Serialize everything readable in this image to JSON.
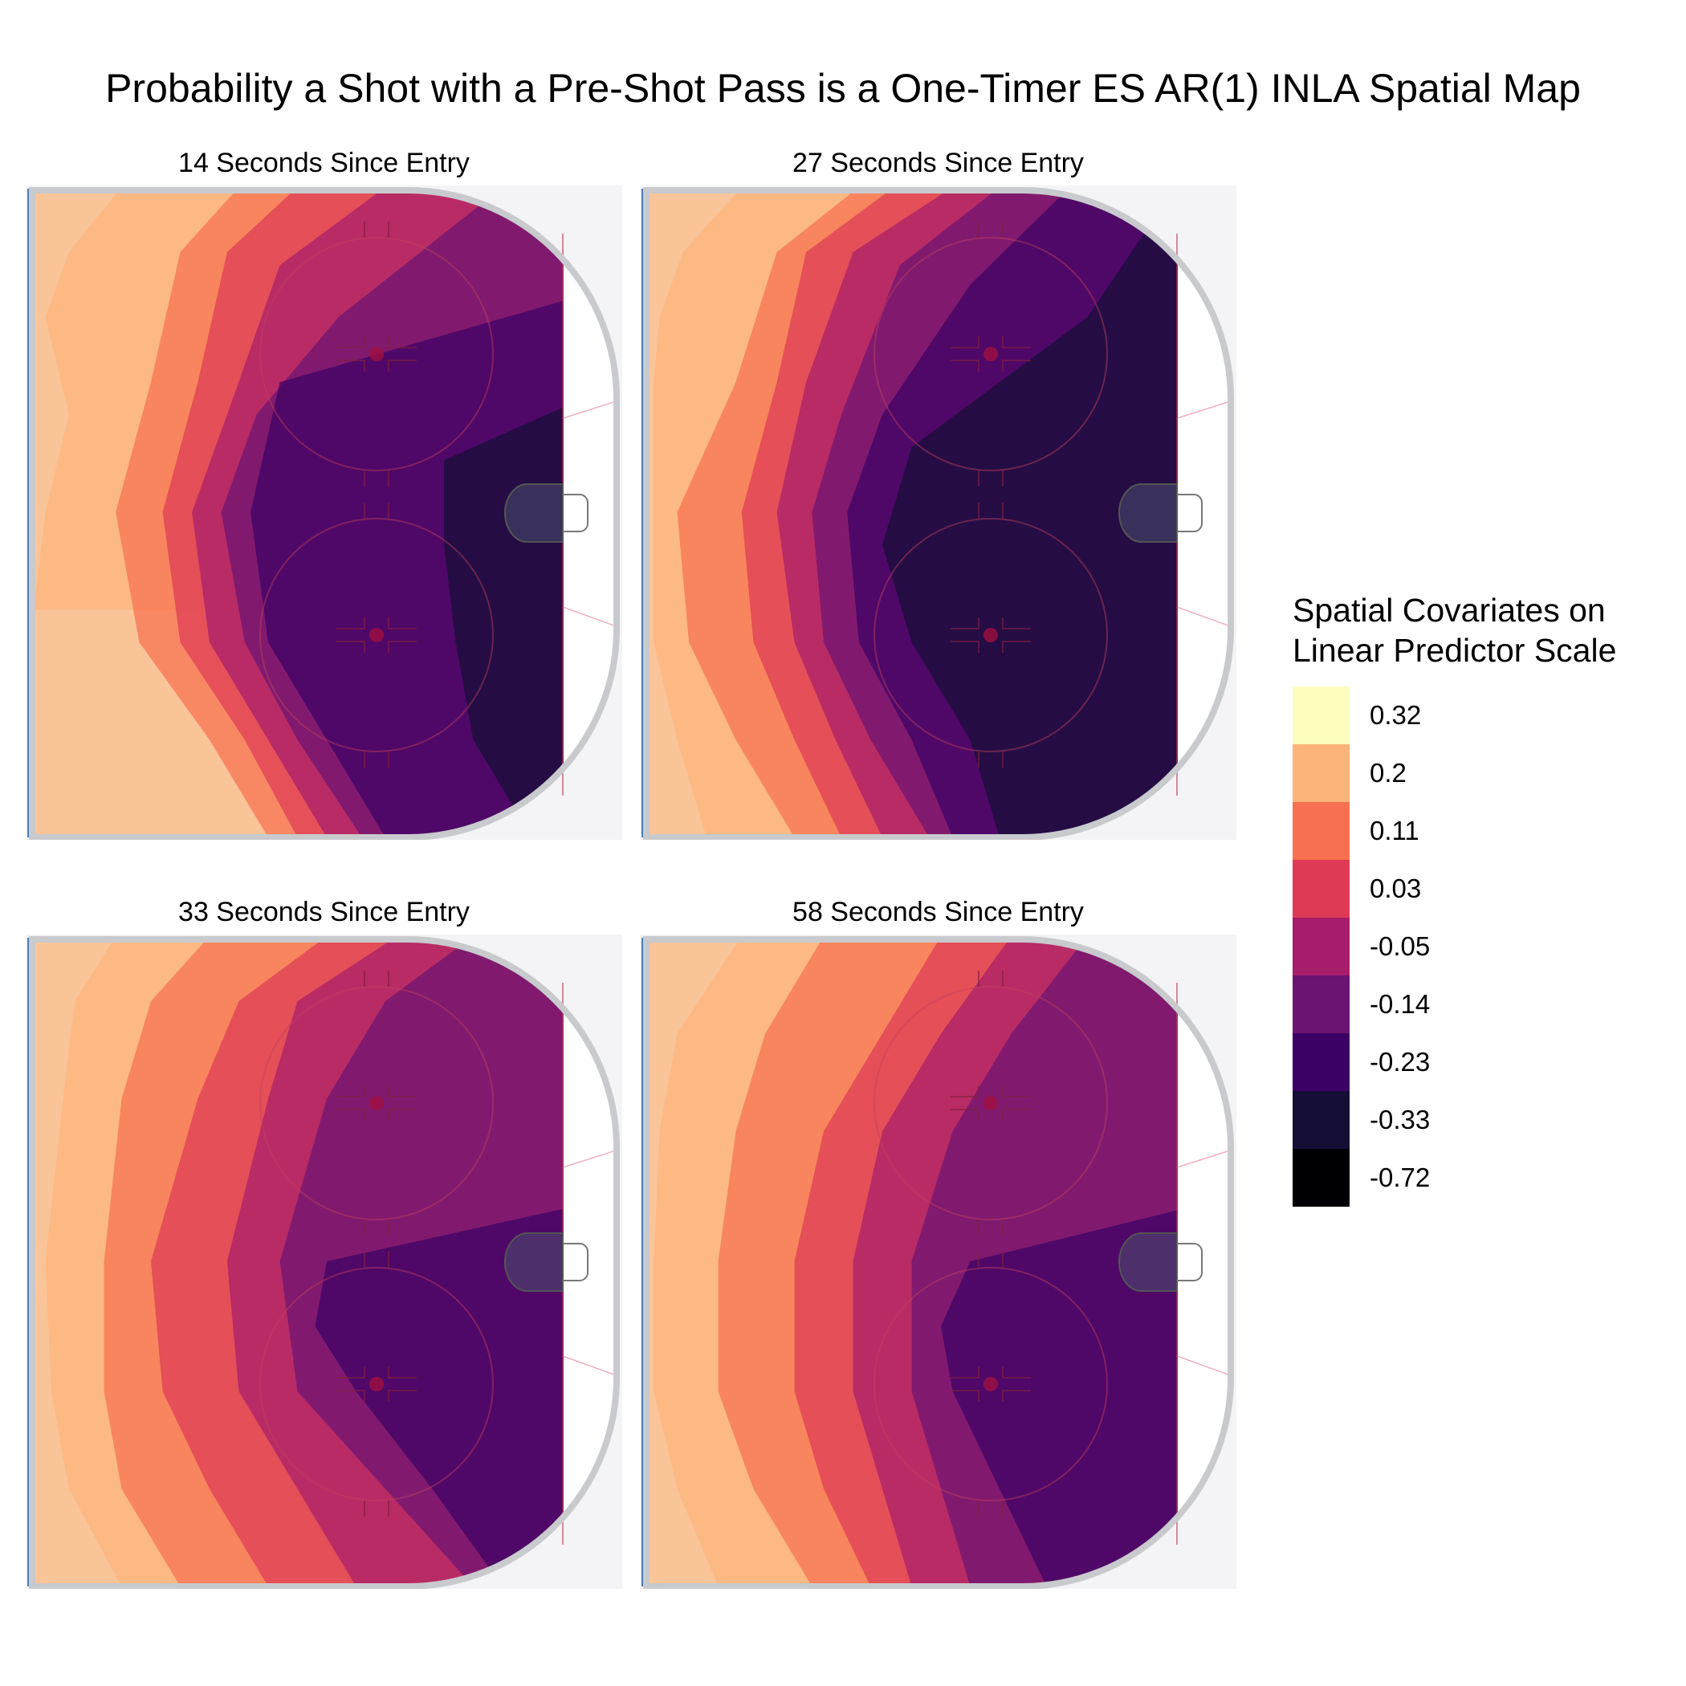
{
  "title": "Probability a Shot with a Pre-Shot Pass is a One-Timer ES AR(1) INLA Spatial Map",
  "legend": {
    "title_line1": "Spatial Covariates on",
    "title_line2": "Linear Predictor Scale",
    "items": [
      {
        "label": "0.32",
        "color": "#FCFDBF"
      },
      {
        "label": "0.2",
        "color": "#FCB47A"
      },
      {
        "label": "0.11",
        "color": "#F7704F"
      },
      {
        "label": "0.03",
        "color": "#DE3A55"
      },
      {
        "label": "-0.05",
        "color": "#A81D6B"
      },
      {
        "label": "-0.14",
        "color": "#6B1472"
      },
      {
        "label": "-0.23",
        "color": "#3B0165"
      },
      {
        "label": "-0.33",
        "color": "#150E37"
      },
      {
        "label": "-0.72",
        "color": "#000004"
      }
    ]
  },
  "chart_data": {
    "type": "heatmap",
    "panels": [
      {
        "title": "14 Seconds Since Entry",
        "bands": [
          {
            "level": 1,
            "x": [
              [
                0,
                0.2
              ],
              [
                0,
                0.15
              ],
              [
                0.1,
                0.06
              ],
              [
                0.2,
                0.02
              ],
              [
                0.35,
                0.06
              ],
              [
                0.5,
                0.02
              ],
              [
                0.65,
                0.0
              ]
            ]
          },
          {
            "level": 2,
            "x": [
              [
                0,
                0.35
              ],
              [
                0.1,
                0.25
              ],
              [
                0.3,
                0.2
              ],
              [
                0.5,
                0.14
              ],
              [
                0.7,
                0.18
              ],
              [
                0.85,
                0.3
              ],
              [
                1.0,
                0.4
              ]
            ]
          },
          {
            "level": 3,
            "x": [
              [
                0,
                0.45
              ],
              [
                0.1,
                0.33
              ],
              [
                0.3,
                0.28
              ],
              [
                0.5,
                0.22
              ],
              [
                0.7,
                0.25
              ],
              [
                0.85,
                0.36
              ],
              [
                1.0,
                0.45
              ]
            ]
          },
          {
            "level": 4,
            "x": [
              [
                0,
                0.6
              ],
              [
                0.12,
                0.42
              ],
              [
                0.35,
                0.33
              ],
              [
                0.5,
                0.27
              ],
              [
                0.7,
                0.3
              ],
              [
                0.85,
                0.4
              ],
              [
                1.0,
                0.5
              ]
            ]
          },
          {
            "level": 5,
            "x": [
              [
                0,
                0.8
              ],
              [
                0.2,
                0.52
              ],
              [
                0.35,
                0.38
              ],
              [
                0.5,
                0.32
              ],
              [
                0.7,
                0.36
              ],
              [
                0.85,
                0.45
              ],
              [
                1.0,
                0.56
              ]
            ]
          },
          {
            "level": 6,
            "x": [
              [
                0.15,
                1.0
              ],
              [
                0.3,
                0.42
              ],
              [
                0.5,
                0.37
              ],
              [
                0.7,
                0.4
              ],
              [
                0.85,
                0.5
              ],
              [
                1.0,
                0.6
              ]
            ]
          },
          {
            "level": 7,
            "x": [
              [
                0.3,
                1.0
              ],
              [
                0.42,
                0.7
              ],
              [
                0.55,
                0.7
              ],
              [
                0.7,
                0.72
              ],
              [
                0.85,
                0.75
              ],
              [
                1.0,
                0.85
              ]
            ]
          }
        ]
      },
      {
        "title": "27 Seconds Since Entry",
        "bands": [
          {
            "level": 1,
            "x": [
              [
                0,
                0.16
              ],
              [
                0.1,
                0.06
              ],
              [
                0.2,
                0.02
              ],
              [
                0.3,
                0.01
              ],
              [
                0.5,
                0.01
              ],
              [
                0.7,
                0.01
              ],
              [
                0.85,
                0.05
              ],
              [
                1.0,
                0.1
              ]
            ]
          },
          {
            "level": 2,
            "x": [
              [
                0,
                0.36
              ],
              [
                0.1,
                0.22
              ],
              [
                0.3,
                0.15
              ],
              [
                0.5,
                0.05
              ],
              [
                0.7,
                0.07
              ],
              [
                0.85,
                0.15
              ],
              [
                1.0,
                0.25
              ]
            ]
          },
          {
            "level": 3,
            "x": [
              [
                0,
                0.42
              ],
              [
                0.1,
                0.27
              ],
              [
                0.3,
                0.22
              ],
              [
                0.5,
                0.16
              ],
              [
                0.7,
                0.18
              ],
              [
                0.85,
                0.25
              ],
              [
                1.0,
                0.33
              ]
            ]
          },
          {
            "level": 4,
            "x": [
              [
                0,
                0.52
              ],
              [
                0.1,
                0.35
              ],
              [
                0.3,
                0.27
              ],
              [
                0.5,
                0.22
              ],
              [
                0.7,
                0.25
              ],
              [
                0.85,
                0.32
              ],
              [
                1.0,
                0.4
              ]
            ]
          },
          {
            "level": 5,
            "x": [
              [
                0,
                0.6
              ],
              [
                0.12,
                0.43
              ],
              [
                0.35,
                0.33
              ],
              [
                0.5,
                0.28
              ],
              [
                0.7,
                0.3
              ],
              [
                0.85,
                0.38
              ],
              [
                1.0,
                0.48
              ]
            ]
          },
          {
            "level": 6,
            "x": [
              [
                0,
                0.72
              ],
              [
                0.15,
                0.55
              ],
              [
                0.35,
                0.4
              ],
              [
                0.5,
                0.34
              ],
              [
                0.7,
                0.36
              ],
              [
                0.85,
                0.45
              ],
              [
                1.0,
                0.52
              ]
            ]
          },
          {
            "level": 7,
            "x": [
              [
                0,
                0.9
              ],
              [
                0.2,
                0.75
              ],
              [
                0.4,
                0.45
              ],
              [
                0.55,
                0.4
              ],
              [
                0.7,
                0.45
              ],
              [
                0.85,
                0.55
              ],
              [
                1.0,
                0.6
              ]
            ]
          }
        ]
      },
      {
        "title": "33 Seconds Since Entry",
        "bands": [
          {
            "level": 1,
            "x": [
              [
                0,
                0.14
              ],
              [
                0.1,
                0.07
              ],
              [
                0.25,
                0.05
              ],
              [
                0.5,
                0.02
              ],
              [
                0.7,
                0.03
              ],
              [
                0.85,
                0.06
              ],
              [
                1.0,
                0.15
              ]
            ]
          },
          {
            "level": 2,
            "x": [
              [
                0,
                0.3
              ],
              [
                0.1,
                0.2
              ],
              [
                0.25,
                0.15
              ],
              [
                0.5,
                0.12
              ],
              [
                0.7,
                0.12
              ],
              [
                0.85,
                0.15
              ],
              [
                1.0,
                0.25
              ]
            ]
          },
          {
            "level": 3,
            "x": [
              [
                0,
                0.5
              ],
              [
                0.1,
                0.35
              ],
              [
                0.25,
                0.28
              ],
              [
                0.5,
                0.2
              ],
              [
                0.7,
                0.22
              ],
              [
                0.85,
                0.3
              ],
              [
                1.0,
                0.4
              ]
            ]
          },
          {
            "level": 4,
            "x": [
              [
                0,
                0.62
              ],
              [
                0.1,
                0.45
              ],
              [
                0.25,
                0.4
              ],
              [
                0.5,
                0.33
              ],
              [
                0.7,
                0.35
              ],
              [
                0.85,
                0.45
              ],
              [
                1.0,
                0.55
              ]
            ]
          },
          {
            "level": 5,
            "x": [
              [
                0,
                0.75
              ],
              [
                0.1,
                0.6
              ],
              [
                0.25,
                0.5
              ],
              [
                0.5,
                0.42
              ],
              [
                0.7,
                0.45
              ],
              [
                0.85,
                0.6
              ],
              [
                1.0,
                0.75
              ]
            ]
          },
          {
            "level": 6,
            "x": [
              [
                0.4,
                1.0
              ],
              [
                0.5,
                0.5
              ],
              [
                0.6,
                0.48
              ],
              [
                0.7,
                0.55
              ],
              [
                0.85,
                0.68
              ],
              [
                1.0,
                0.8
              ]
            ]
          }
        ]
      },
      {
        "title": "58 Seconds Since Entry",
        "bands": [
          {
            "level": 1,
            "x": [
              [
                0,
                0.16
              ],
              [
                0.15,
                0.05
              ],
              [
                0.3,
                0.02
              ],
              [
                0.5,
                0.01
              ],
              [
                0.7,
                0.01
              ],
              [
                0.85,
                0.05
              ],
              [
                1.0,
                0.12
              ]
            ]
          },
          {
            "level": 2,
            "x": [
              [
                0,
                0.3
              ],
              [
                0.15,
                0.2
              ],
              [
                0.3,
                0.15
              ],
              [
                0.5,
                0.12
              ],
              [
                0.7,
                0.12
              ],
              [
                0.85,
                0.18
              ],
              [
                1.0,
                0.28
              ]
            ]
          },
          {
            "level": 3,
            "x": [
              [
                0,
                0.5
              ],
              [
                0.15,
                0.4
              ],
              [
                0.3,
                0.3
              ],
              [
                0.5,
                0.25
              ],
              [
                0.7,
                0.25
              ],
              [
                0.85,
                0.3
              ],
              [
                1.0,
                0.38
              ]
            ]
          },
          {
            "level": 4,
            "x": [
              [
                0,
                0.62
              ],
              [
                0.15,
                0.5
              ],
              [
                0.3,
                0.4
              ],
              [
                0.5,
                0.35
              ],
              [
                0.7,
                0.35
              ],
              [
                0.85,
                0.4
              ],
              [
                1.0,
                0.45
              ]
            ]
          },
          {
            "level": 5,
            "x": [
              [
                0,
                0.75
              ],
              [
                0.15,
                0.62
              ],
              [
                0.3,
                0.52
              ],
              [
                0.5,
                0.45
              ],
              [
                0.7,
                0.45
              ],
              [
                0.85,
                0.5
              ],
              [
                1.0,
                0.55
              ]
            ]
          },
          {
            "level": 6,
            "x": [
              [
                0.4,
                1.0
              ],
              [
                0.5,
                0.55
              ],
              [
                0.6,
                0.5
              ],
              [
                0.7,
                0.52
              ],
              [
                0.85,
                0.6
              ],
              [
                1.0,
                0.68
              ]
            ]
          }
        ]
      }
    ]
  }
}
